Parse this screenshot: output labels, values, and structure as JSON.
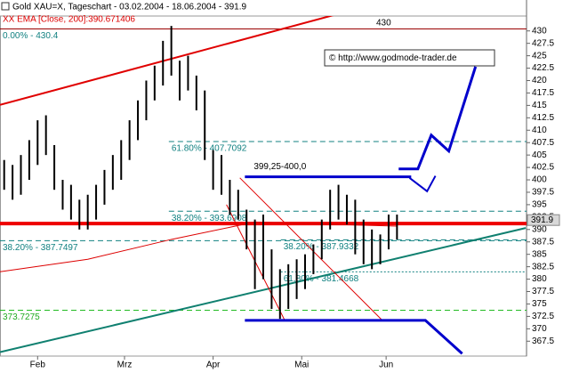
{
  "chart_data": {
    "type": "hlbar",
    "title": "Gold XAU=X, Tageschart - 03.02.2004 - 18.06.2004 - 391.9",
    "indicator_label": "XX EMA [Close, 200]:390.671406",
    "copyright": "© http://www.godmode-trader.de",
    "color": "#000000",
    "high": [
      404,
      403,
      405,
      408,
      412,
      413,
      407,
      400,
      399,
      396,
      397,
      399,
      402,
      405,
      408,
      412,
      416,
      420,
      423,
      428,
      431,
      424,
      425,
      421,
      418,
      406,
      405,
      400,
      398,
      394,
      392,
      393,
      386,
      382,
      383,
      384,
      385,
      387,
      392,
      398,
      399,
      397,
      396,
      392,
      390,
      389,
      393,
      393
    ],
    "low": [
      398,
      396,
      397,
      400,
      403,
      405,
      398,
      394,
      392,
      390,
      390,
      392,
      395,
      398,
      400,
      404,
      408,
      412,
      416,
      419,
      421,
      416,
      418,
      414,
      404,
      398,
      397,
      393,
      392,
      386,
      378,
      380,
      374,
      372,
      374,
      376,
      378,
      381,
      384,
      390,
      392,
      391,
      385,
      383,
      382,
      383,
      386,
      388
    ],
    "ema": {
      "color": "#dd0000",
      "x": [
        -0.5,
        10,
        20,
        30,
        40,
        47
      ],
      "values": [
        381.5,
        384,
        388,
        391.5,
        391,
        390.67
      ]
    },
    "xlim": [
      -0.5,
      62.5
    ],
    "ylim": [
      364.5,
      433
    ],
    "yticks": [
      367.5,
      370,
      372.5,
      375,
      377.5,
      380,
      382.5,
      385,
      387.5,
      390,
      392.5,
      395,
      397.5,
      400,
      402.5,
      405,
      407.5,
      410,
      412.5,
      415,
      417.5,
      420,
      422.5,
      425,
      427.5,
      430
    ],
    "xticks": [
      {
        "value": 4,
        "label": "Feb"
      },
      {
        "value": 14.4,
        "label": "Mrz"
      },
      {
        "value": 25,
        "label": "Apr"
      },
      {
        "value": 35.6,
        "label": "Mai"
      },
      {
        "value": 45.7,
        "label": "Jun"
      }
    ],
    "last_price": 391.9,
    "levels": [
      {
        "value": 430.4,
        "label": "0.00% - 430.4",
        "color": "#990000",
        "label_color": "#108080",
        "dash": "none",
        "width": 1,
        "start": -0.5
      },
      {
        "value": 407.7092,
        "label": "61.80% - 407.7092",
        "color": "#108080",
        "label_color": "#108080",
        "dash": "6,4",
        "width": 1,
        "start": 19.7
      },
      {
        "value": 393.6908,
        "label": "38.20% - 393.6908",
        "color": "#108080",
        "label_color": "#108080",
        "dash": "6,4",
        "width": 1,
        "start": 19.7
      },
      {
        "value": 391.2,
        "color": "#ee0000",
        "dash": "none",
        "width": 4,
        "start": -0.5
      },
      {
        "value": 387.7497,
        "label": "38.20% - 387.7497",
        "color": "#108080",
        "label_color": "#108080",
        "dash": "6,4",
        "width": 1,
        "start": -0.5
      },
      {
        "value": 387.9332,
        "label": "38.20% - 387.9332",
        "color": "#108080",
        "label_color": "#108080",
        "dash": "6,4",
        "width": 1,
        "start": 33.1
      },
      {
        "value": 381.4668,
        "label": "61.80% - 381.4668",
        "color": "#108080",
        "label_color": "#108080",
        "dash": "2,2",
        "width": 1,
        "start": 33.1
      },
      {
        "value": 373.7275,
        "label": "373.7275",
        "color": "#22bb22",
        "label_color": "#22aa22",
        "dash": "6,4",
        "width": 1,
        "start": -0.5
      }
    ],
    "drawings": [
      {
        "color": "#e00000",
        "width": 2,
        "points": [
          [
            -0.5,
            415.1
          ],
          [
            46.3,
            436.3
          ]
        ]
      },
      {
        "color": "#108070",
        "width": 2,
        "points": [
          [
            -0.5,
            365.3
          ],
          [
            62.4,
            390.3
          ]
        ]
      },
      {
        "color": "#e00000",
        "width": 1,
        "points": [
          [
            28.2,
            400.4
          ],
          [
            45.3,
            371.6
          ]
        ]
      },
      {
        "color": "#e00000",
        "width": 1,
        "points": [
          [
            26.6,
            395
          ],
          [
            33.6,
            371.6
          ]
        ]
      },
      {
        "color": "#0000cc",
        "width": 3,
        "points": [
          [
            28.8,
            400.6
          ],
          [
            48.7,
            400.6
          ]
        ]
      },
      {
        "color": "#0000cc",
        "width": 3,
        "points": [
          [
            28.8,
            371.7
          ],
          [
            50.4,
            371.7
          ],
          [
            54.8,
            365
          ]
        ]
      },
      {
        "color": "#0000cc",
        "width": 3,
        "points": [
          [
            47.2,
            402.2
          ],
          [
            49.5,
            402.2
          ],
          [
            51.1,
            409
          ],
          [
            53.2,
            405.8
          ],
          [
            56.4,
            422.8
          ]
        ]
      },
      {
        "color": "#0000cc",
        "width": 2,
        "points": [
          [
            48.5,
            400.4
          ],
          [
            50.6,
            397.7
          ],
          [
            51.6,
            400.8
          ]
        ]
      }
    ],
    "annotations": [
      {
        "text": "430",
        "x": 45.4,
        "y": 431.6
      },
      {
        "text": "399,25-400,0",
        "x": 33,
        "y": 402.6
      }
    ]
  }
}
